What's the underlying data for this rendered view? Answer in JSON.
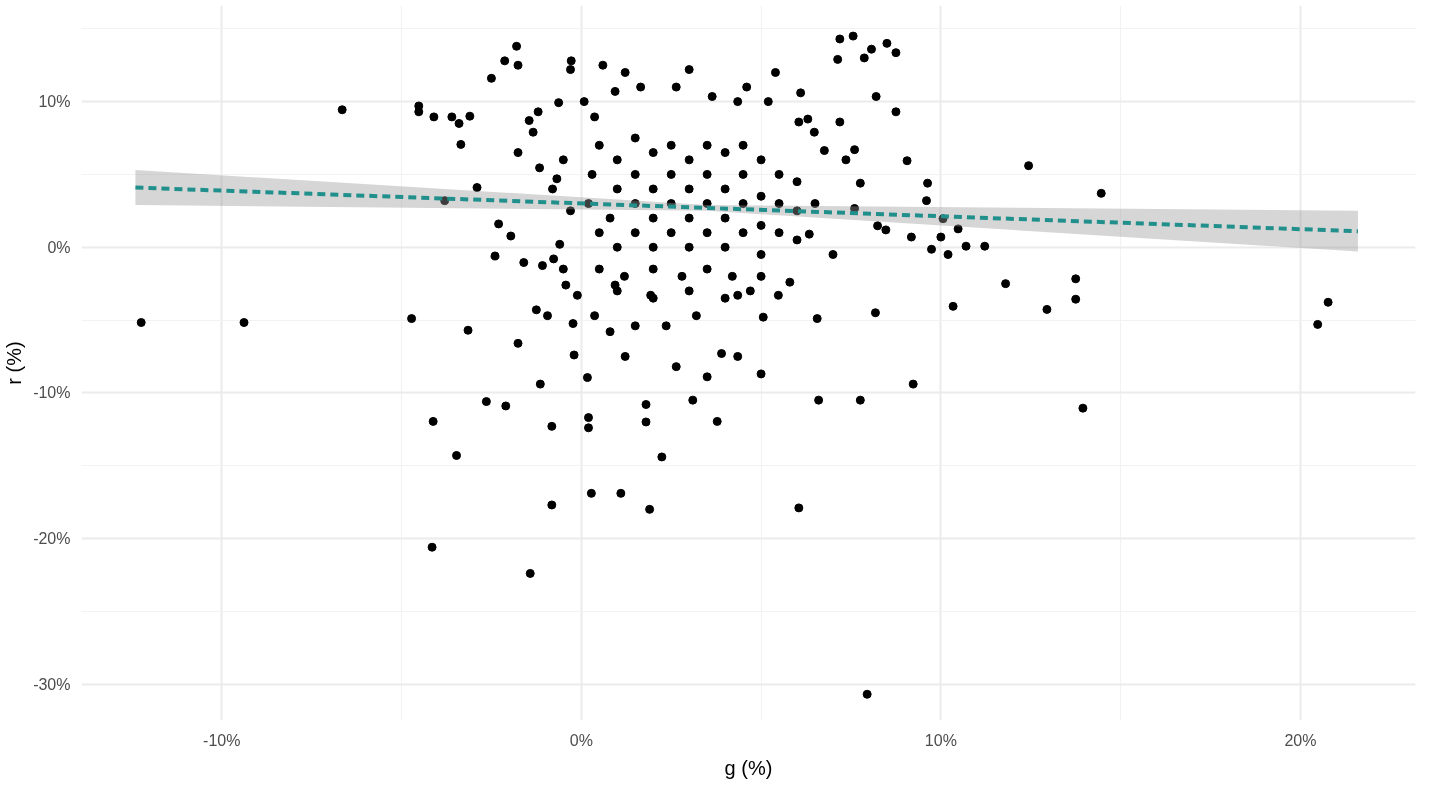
{
  "chart_data": {
    "type": "scatter",
    "xlabel": "g (%)",
    "ylabel": "r (%)",
    "grid": true,
    "xlim": [
      -13.9,
      23.2
    ],
    "ylim": [
      -32.5,
      16.6
    ],
    "xticks": [
      {
        "value": -10,
        "label": "-10%"
      },
      {
        "value": -5,
        "label": null
      },
      {
        "value": 0,
        "label": "0%"
      },
      {
        "value": 5,
        "label": null
      },
      {
        "value": 10,
        "label": "10%"
      },
      {
        "value": 15,
        "label": null
      },
      {
        "value": 20,
        "label": "20%"
      }
    ],
    "yticks": [
      {
        "value": -30,
        "label": "-30%"
      },
      {
        "value": -25,
        "label": null
      },
      {
        "value": -20,
        "label": "-20%"
      },
      {
        "value": -15,
        "label": null
      },
      {
        "value": -10,
        "label": "-10%"
      },
      {
        "value": -5,
        "label": null
      },
      {
        "value": 0,
        "label": "0%"
      },
      {
        "value": 5,
        "label": null
      },
      {
        "value": 10,
        "label": "10%"
      },
      {
        "value": 15,
        "label": null
      }
    ],
    "series": [
      {
        "color": "#000000",
        "marker": "circle",
        "x": [
          -12.24,
          -9.38,
          -6.65,
          -4.72,
          -4.52,
          -4.52,
          -4.12,
          -4.15,
          -3.47,
          -4.1,
          -3.6,
          -3.1,
          -3.4,
          -3.35,
          -3.8,
          -3.15,
          -2.9,
          -2.64,
          -2.5,
          -2.4,
          -2.3,
          -2.13,
          -2.1,
          -1.76,
          -1.8,
          -1.76,
          -1.42,
          -1.45,
          -1.14,
          -0.82,
          -0.82,
          -0.77,
          -0.28,
          0.17,
          0.2,
          0.2,
          0.28,
          1.1,
          1.9,
          1.8,
          1.8,
          2.24,
          3.1,
          3.78,
          3.9,
          5.0,
          5.8,
          6.05,
          6.6,
          6.56,
          7.76,
          8.18,
          7.95,
          9.23,
          10.34,
          11.8,
          12.95,
          13.75,
          13.75,
          13.95,
          14.46,
          12.44,
          20.48,
          20.77,
          9.63,
          9.6,
          8.75,
          8.2,
          8.75,
          8.5,
          7.87,
          8.07,
          7.19,
          7.56,
          7.13,
          6.1,
          6.3,
          5.4,
          3.0,
          1.22,
          0.6,
          -0.3,
          0.08,
          -0.63,
          -1.2,
          -1.34,
          -1.76,
          -1.16,
          -0.68,
          -0.6,
          -0.43,
          -0.23,
          -0.2,
          -0.11,
          -0.94,
          -1.25,
          -1.08,
          -1.6,
          -1.96,
          9.06,
          9.18,
          10.0,
          10.06,
          10.48,
          9.74,
          10.2,
          10.7,
          11.22,
          8.47,
          8.24,
          7.6,
          7.76,
          7.6,
          7.36,
          6.76,
          7.19,
          6.48,
          6.05,
          6.34,
          7.0,
          5.48,
          5.06,
          4.35,
          3.5,
          2.64,
          2.36,
          1.5,
          1.22,
          0.8,
          0.37,
          0.94,
          1.93,
          3.2,
          4.35,
          4.6,
          4.35,
          3.64,
          2.64,
          1.65,
          0.94,
          0.37,
          5.2,
          0.5,
          1,
          1.5,
          2,
          2.5,
          3,
          3.5,
          4,
          4.5,
          5,
          5.5,
          6,
          0.3,
          1,
          1.5,
          2,
          2.5,
          3,
          3.5,
          4,
          4.5,
          5,
          5.5,
          6,
          6.5,
          0.2,
          0.8,
          1.5,
          2,
          2.5,
          3,
          3.5,
          4,
          4.5,
          5,
          5.5,
          6,
          0.5,
          1,
          1.5,
          2,
          2.5,
          3,
          3.5,
          4,
          4.5,
          5,
          0.5,
          1.2,
          2,
          2.8,
          3.5,
          4.2,
          5,
          1,
          2,
          3,
          4,
          4.7,
          -0.5,
          -0.8,
          -0.3,
          -0.5
        ],
        "values": [
          -5.17,
          -5.17,
          9.44,
          -4.9,
          9.7,
          9.3,
          -11.96,
          -20.6,
          -14.3,
          8.95,
          8.95,
          9.0,
          8.5,
          7.06,
          3.2,
          -5.7,
          4.1,
          -10.6,
          11.6,
          -0.6,
          1.6,
          12.8,
          -10.9,
          -6.6,
          13.8,
          12.5,
          -22.4,
          8.7,
          -9.4,
          -12.3,
          -17.7,
          -0.8,
          12.8,
          -8.95,
          -11.7,
          -12.4,
          -16.9,
          -16.9,
          -18.0,
          -12.0,
          -10.8,
          -14.4,
          -10.5,
          -11.96,
          -7.3,
          -8.7,
          -2.4,
          -17.9,
          -10.5,
          -4.9,
          -10.5,
          -4.5,
          -30.7,
          -9.4,
          -4.06,
          -2.5,
          -4.27,
          -3.57,
          -2.17,
          -11.05,
          3.7,
          5.6,
          -5.3,
          -3.78,
          4.4,
          3.2,
          9.3,
          10.35,
          13.36,
          14.0,
          13.0,
          13.6,
          14.3,
          14.5,
          12.9,
          10.6,
          8.8,
          12.0,
          12.2,
          12.0,
          12.5,
          12.2,
          10.0,
          9.93,
          9.3,
          7.9,
          6.5,
          5.45,
          4.7,
          0.2,
          -2.6,
          -5.24,
          -7.4,
          -3.3,
          -4.7,
          -4.3,
          -1.26,
          -1.05,
          0.77,
          5.94,
          0.7,
          0.7,
          1.96,
          1.26,
          -0.14,
          -0.5,
          0.07,
          0.07,
          1.19,
          1.47,
          2.66,
          4.4,
          6.7,
          6.0,
          6.64,
          8.6,
          7.9,
          8.6,
          0.9,
          -0.5,
          -3.3,
          -4.8,
          -7.5,
          -8.9,
          -8.2,
          -5.4,
          -5.4,
          -7.5,
          -5.8,
          -4.7,
          -2.6,
          -3.3,
          -4.7,
          -3.3,
          11.0,
          10.0,
          10.35,
          11.0,
          11.0,
          10.7,
          8.95,
          10.0,
          7,
          6,
          7.5,
          6.5,
          7,
          6,
          7,
          6.5,
          7,
          6,
          5,
          4.5,
          5,
          4,
          5,
          4,
          5,
          4,
          5,
          4,
          5,
          3.5,
          3,
          2.5,
          3,
          3,
          2,
          3,
          2,
          3,
          2,
          3,
          2,
          3,
          1.5,
          1,
          0.5,
          1,
          0,
          1,
          0,
          1,
          0,
          1,
          0,
          1,
          -0.5,
          -1.5,
          -2,
          -1.5,
          -2,
          -1.5,
          -2,
          -2,
          -3,
          -3.5,
          -3,
          -3.5,
          -3,
          6,
          4,
          2.5,
          -1.5
        ]
      },
      {
        "type": "line",
        "color": "#21908c",
        "line_style": "dashed",
        "x": [
          -12.4,
          3.5,
          21.6
        ],
        "values": [
          4.1,
          2.7,
          1.1
        ],
        "lower": [
          2.9,
          2.5,
          -0.3
        ],
        "upper": [
          5.3,
          2.9,
          2.5
        ]
      }
    ]
  }
}
